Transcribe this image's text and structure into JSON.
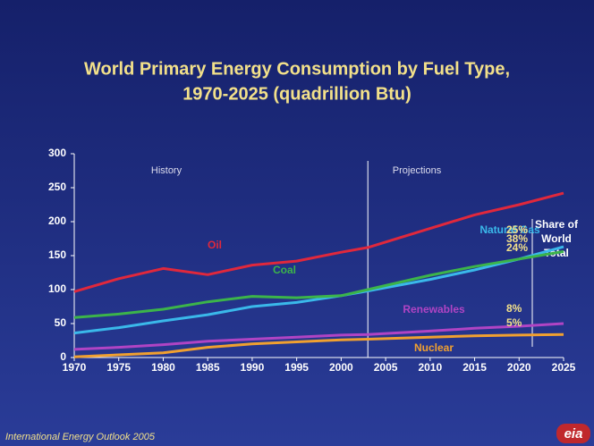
{
  "chart_data": {
    "type": "line",
    "title": "World Primary Energy Consumption by Fuel Type,",
    "subtitle": "1970-2025 (quadrillion Btu)",
    "x": [
      1970,
      1975,
      1980,
      1985,
      1990,
      1995,
      2000,
      2003,
      2010,
      2015,
      2020,
      2025
    ],
    "xlim": [
      1970,
      2025
    ],
    "xticks": [
      1970,
      1975,
      1980,
      1985,
      1990,
      1995,
      2000,
      2005,
      2010,
      2015,
      2020,
      2025
    ],
    "ylim": [
      0,
      300
    ],
    "yticks": [
      0,
      50,
      100,
      150,
      200,
      250,
      300
    ],
    "series": [
      {
        "name": "Oil",
        "color": "#e0283c",
        "share": "38%",
        "values": [
          97,
          116,
          131,
          122,
          136,
          142,
          155,
          162,
          190,
          210,
          225,
          242
        ]
      },
      {
        "name": "Natural Gas",
        "color": "#3ab8ea",
        "share": "25%",
        "values": [
          36,
          44,
          54,
          63,
          75,
          81,
          91,
          98,
          115,
          129,
          145,
          163
        ]
      },
      {
        "name": "Coal",
        "color": "#3cb44a",
        "share": "24%",
        "values": [
          59,
          64,
          71,
          82,
          90,
          88,
          91,
          100,
          121,
          134,
          145,
          156
        ]
      },
      {
        "name": "Renewables",
        "color": "#b044c4",
        "share": "8%",
        "values": [
          12,
          15,
          19,
          24,
          27,
          30,
          33,
          34,
          39,
          43,
          46,
          50
        ]
      },
      {
        "name": "Nuclear",
        "color": "#f0a030",
        "share": "5%",
        "values": [
          1,
          4,
          7,
          15,
          20,
          23,
          26,
          27,
          30,
          32,
          33,
          34
        ]
      }
    ],
    "divider": 2003,
    "history_label": "History",
    "projections_label": "Projections",
    "share_title": [
      "Share of",
      "World",
      "Total"
    ],
    "footer": "International Energy Outlook 2005",
    "logo": "eia"
  }
}
